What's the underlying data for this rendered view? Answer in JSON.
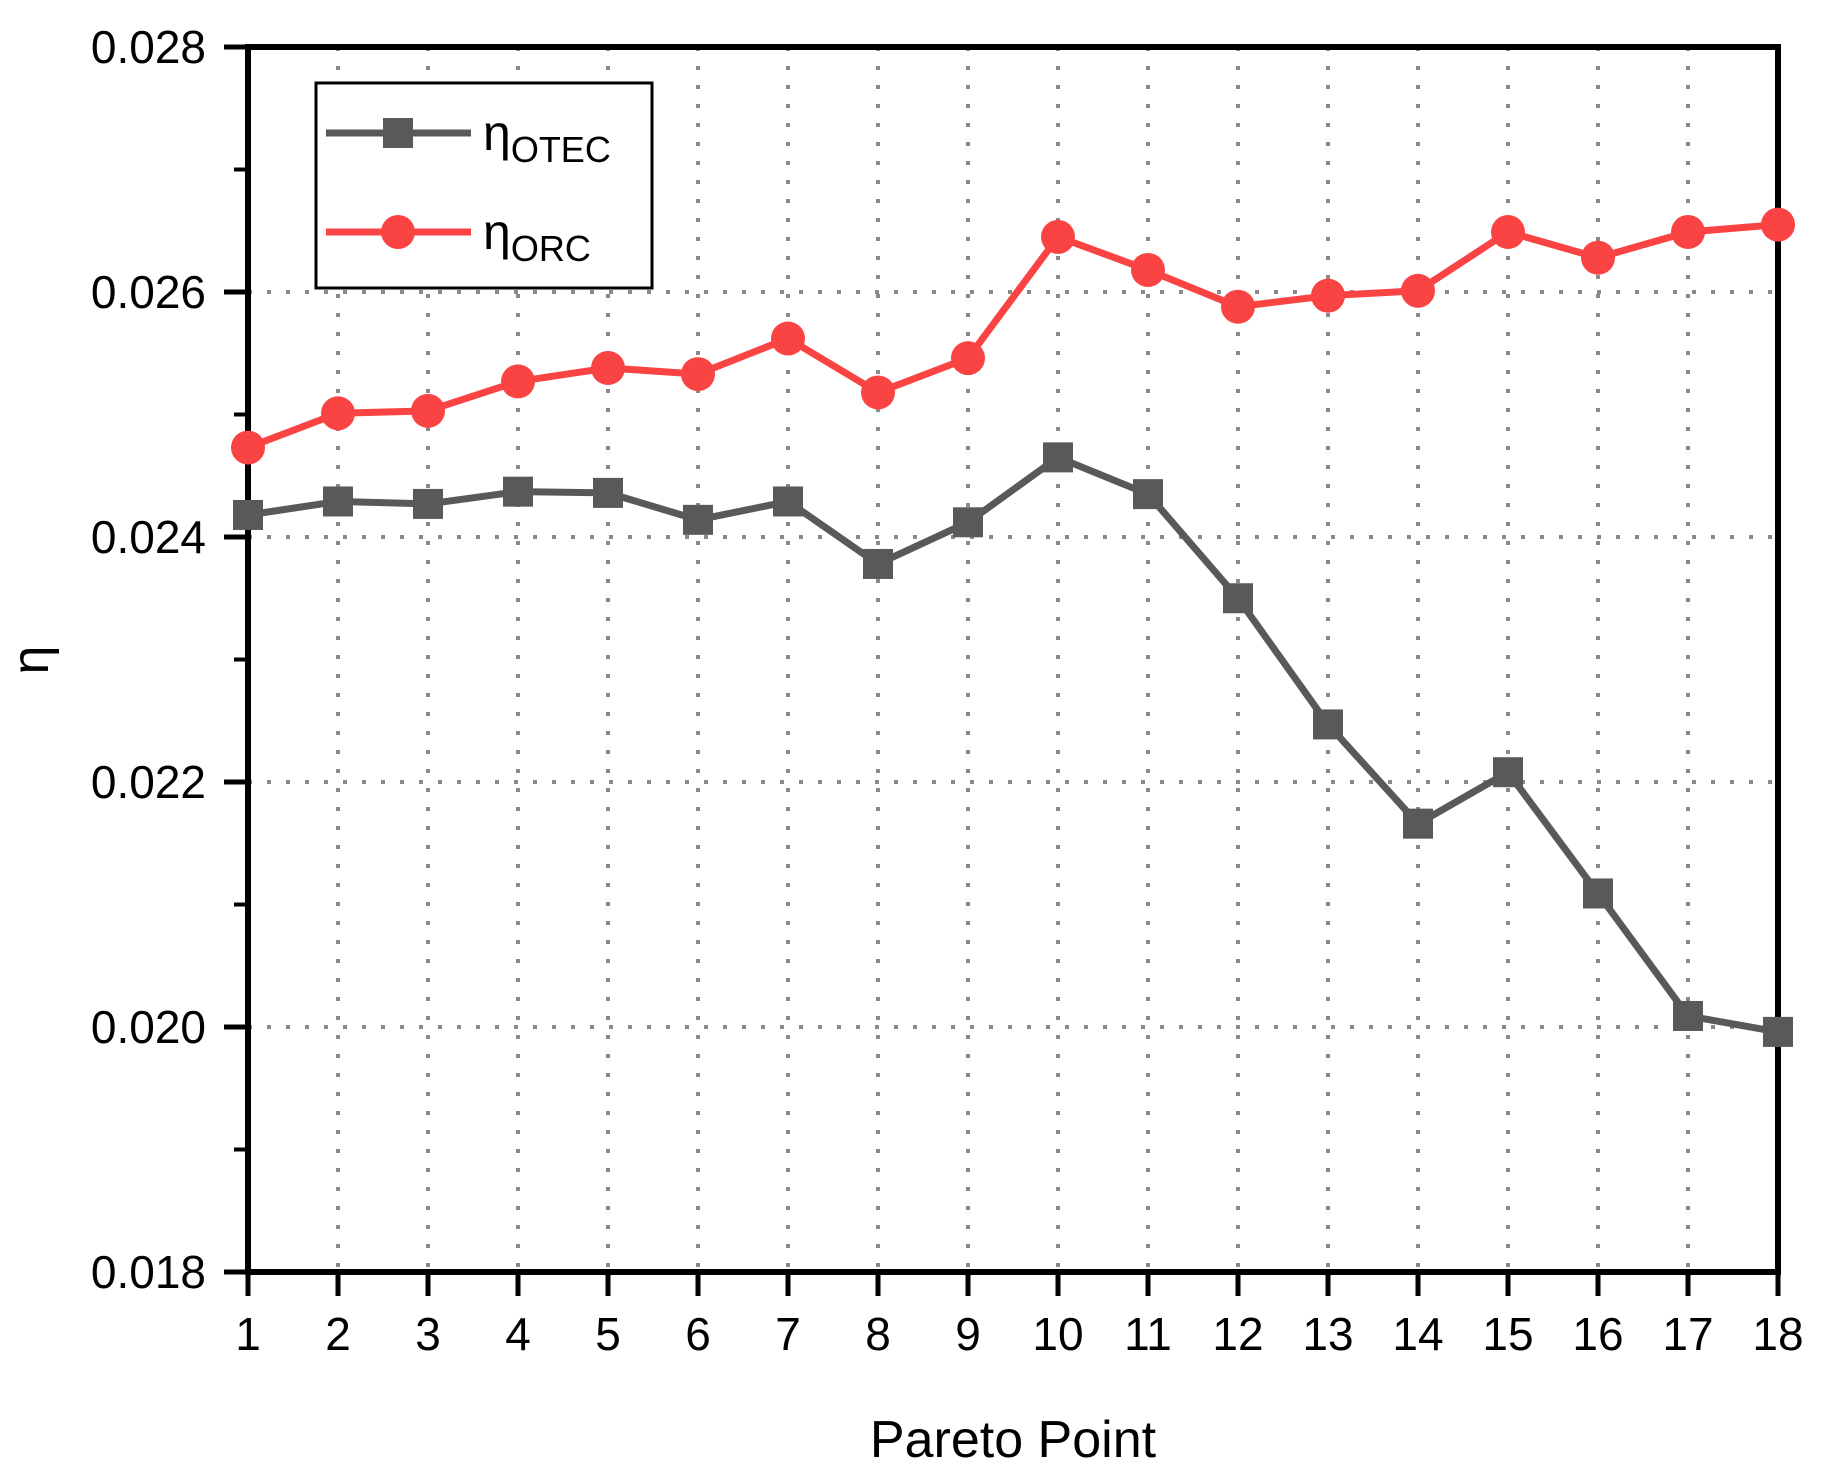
{
  "chart_data": {
    "type": "line",
    "title": "",
    "xlabel": "Pareto Point",
    "ylabel": "η",
    "xlim": [
      1,
      18
    ],
    "ylim": [
      0.018,
      0.028
    ],
    "grid": "dotted",
    "legend_position": "top-left",
    "x": [
      1,
      2,
      3,
      4,
      5,
      6,
      7,
      8,
      9,
      10,
      11,
      12,
      13,
      14,
      15,
      16,
      17,
      18
    ],
    "xtick_labels": [
      "1",
      "2",
      "3",
      "4",
      "5",
      "6",
      "7",
      "8",
      "9",
      "10",
      "11",
      "12",
      "13",
      "14",
      "15",
      "16",
      "17",
      "18"
    ],
    "ytick_values": [
      0.018,
      0.02,
      0.022,
      0.024,
      0.026,
      0.028
    ],
    "ytick_labels": [
      "0.018",
      "0.020",
      "0.022",
      "0.024",
      "0.026",
      "0.028"
    ],
    "y_minor_tick_values": [
      0.019,
      0.021,
      0.023,
      0.025,
      0.027
    ],
    "series": [
      {
        "name": "η_OTEC",
        "label_base": "η",
        "label_sub": "OTEC",
        "marker": "square",
        "color": "#595959",
        "values": [
          0.02418,
          0.02429,
          0.02427,
          0.02437,
          0.02436,
          0.02414,
          0.02429,
          0.02378,
          0.02412,
          0.02465,
          0.02435,
          0.0235,
          0.02247,
          0.02166,
          0.02208,
          0.02109,
          0.02009,
          0.01996
        ]
      },
      {
        "name": "η_ORC",
        "label_base": "η",
        "label_sub": "ORC",
        "marker": "circle",
        "color": "#FA4343",
        "values": [
          0.02473,
          0.02501,
          0.02503,
          0.02527,
          0.02538,
          0.02533,
          0.02562,
          0.02518,
          0.02546,
          0.02645,
          0.02618,
          0.02588,
          0.02597,
          0.02601,
          0.02649,
          0.02628,
          0.02649,
          0.02655
        ]
      }
    ],
    "colors": {
      "axis": "#000000",
      "grid": "#8A8A8A",
      "background": "#FFFFFF",
      "legend_border": "#000000"
    }
  }
}
